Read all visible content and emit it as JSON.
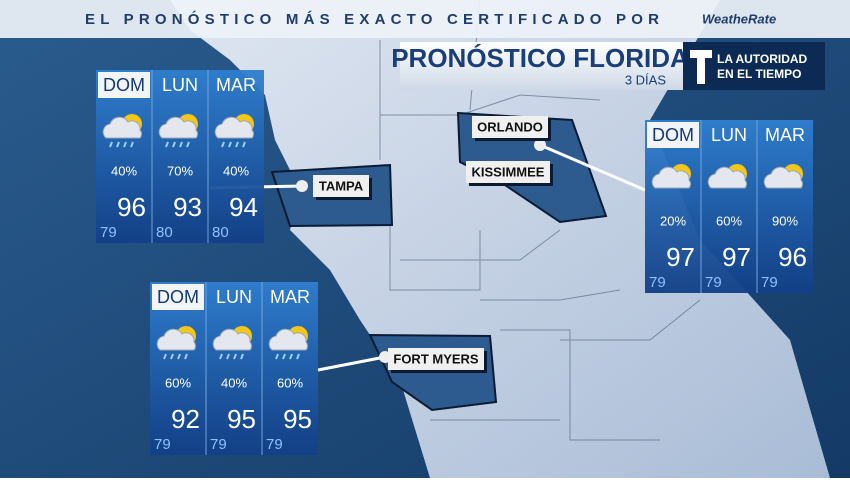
{
  "banner": {
    "text": "EL PRONÓSTICO MÁS EXACTO CERTIFICADO POR",
    "brand": "WeatheRate"
  },
  "header": {
    "title": "PRONÓSTICO FLORIDA",
    "subtitle": "3 DÍAS",
    "tagline": [
      "LA AUTORIDAD",
      "EN EL TIEMPO"
    ]
  },
  "panels": [
    {
      "days": [
        {
          "day": "DOM",
          "precip": "40%",
          "high": 96,
          "low": 79
        },
        {
          "day": "LUN",
          "precip": "70%",
          "high": 93,
          "low": 80
        },
        {
          "day": "MAR",
          "precip": "40%",
          "high": 94,
          "low": 80
        }
      ]
    },
    {
      "days": [
        {
          "day": "DOM",
          "precip": "20%",
          "high": 97,
          "low": 79
        },
        {
          "day": "LUN",
          "precip": "60%",
          "high": 97,
          "low": 79
        },
        {
          "day": "MAR",
          "precip": "90%",
          "high": 96,
          "low": 79
        }
      ]
    },
    {
      "days": [
        {
          "day": "DOM",
          "precip": "60%",
          "high": 92,
          "low": 79
        },
        {
          "day": "LUN",
          "precip": "40%",
          "high": 95,
          "low": 79
        },
        {
          "day": "MAR",
          "precip": "60%",
          "high": 95,
          "low": 79
        }
      ]
    }
  ],
  "labels": [
    {
      "text": "TAMPA"
    },
    {
      "text": "ORLANDO"
    },
    {
      "text": "KISSIMMEE"
    },
    {
      "text": "FORT MYERS"
    }
  ]
}
